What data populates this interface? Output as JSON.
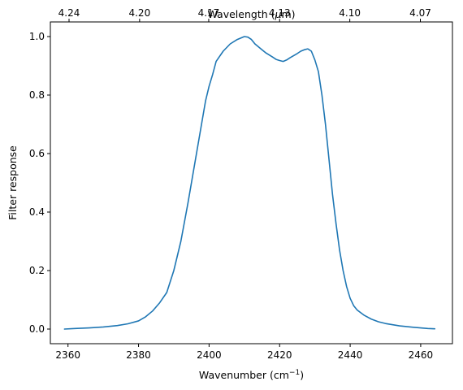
{
  "chart_data": {
    "type": "line",
    "xlabel": "Wavenumber (cm",
    "xlabel_superscript": "−1",
    "xlabel_suffix": ")",
    "ylabel": "Filter response",
    "top_xlabel_prefix": "Wavelength (",
    "top_xlabel_symbol": "μ",
    "top_xlabel_suffix": "m)",
    "xlim": [
      2355,
      2469
    ],
    "ylim": [
      -0.05,
      1.05
    ],
    "xticks": [
      2360,
      2380,
      2400,
      2420,
      2440,
      2460
    ],
    "xtick_labels": [
      "2360",
      "2380",
      "2400",
      "2420",
      "2440",
      "2460"
    ],
    "yticks": [
      0.0,
      0.2,
      0.4,
      0.6,
      0.8,
      1.0
    ],
    "ytick_labels": [
      "0.0",
      "0.2",
      "0.4",
      "0.6",
      "0.8",
      "1.0"
    ],
    "top_ticks": [
      {
        "value": 2360.3,
        "label": "4.24"
      },
      {
        "value": 2380.3,
        "label": "4.20"
      },
      {
        "value": 2399.9,
        "label": "4.17"
      },
      {
        "value": 2420.0,
        "label": "4.13"
      },
      {
        "value": 2439.9,
        "label": "4.10"
      },
      {
        "value": 2459.9,
        "label": "4.07"
      }
    ],
    "grid": false,
    "series": [
      {
        "color": "#1f77b4",
        "x": [
          2359,
          2362,
          2366,
          2370,
          2374,
          2377,
          2380,
          2382,
          2384,
          2386,
          2388,
          2390,
          2392,
          2394,
          2396,
          2398,
          2399,
          2400,
          2401,
          2402,
          2404,
          2406,
          2408,
          2410,
          2411,
          2412,
          2413,
          2414,
          2415,
          2416,
          2418,
          2419,
          2420,
          2421,
          2422,
          2423,
          2424,
          2425,
          2426,
          2427,
          2428,
          2429,
          2430,
          2431,
          2432,
          2433,
          2434,
          2435,
          2436,
          2437,
          2438,
          2439,
          2440,
          2441,
          2442,
          2444,
          2446,
          2448,
          2450,
          2454,
          2458,
          2462,
          2464
        ],
        "y": [
          0.0,
          0.002,
          0.004,
          0.007,
          0.012,
          0.018,
          0.028,
          0.042,
          0.062,
          0.09,
          0.125,
          0.2,
          0.3,
          0.43,
          0.57,
          0.71,
          0.78,
          0.83,
          0.87,
          0.915,
          0.95,
          0.975,
          0.99,
          1.0,
          0.998,
          0.99,
          0.975,
          0.965,
          0.955,
          0.945,
          0.93,
          0.922,
          0.918,
          0.915,
          0.92,
          0.928,
          0.935,
          0.942,
          0.95,
          0.955,
          0.958,
          0.95,
          0.92,
          0.88,
          0.8,
          0.7,
          0.58,
          0.46,
          0.36,
          0.27,
          0.2,
          0.145,
          0.105,
          0.08,
          0.065,
          0.047,
          0.034,
          0.025,
          0.019,
          0.011,
          0.006,
          0.002,
          0.001
        ]
      }
    ]
  }
}
